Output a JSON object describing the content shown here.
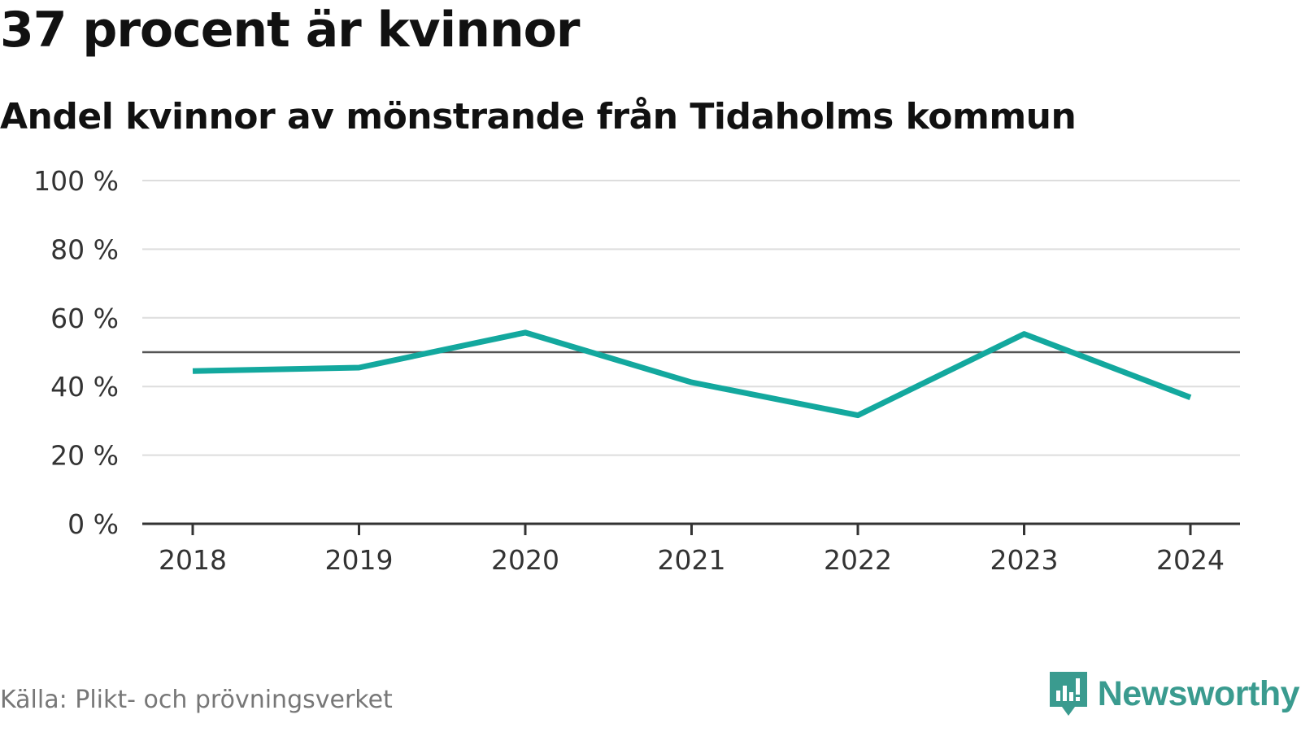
{
  "header": {
    "title": "37 procent är kvinnor",
    "subtitle": "Andel kvinnor av mönstrande från Tidaholms kommun"
  },
  "footer": {
    "source": "Källa: Plikt- och prövningsverket",
    "brand": "Newsworthy"
  },
  "colors": {
    "line": "#13a89e",
    "reference": "#555555",
    "grid": "#dddddd",
    "axis": "#333333",
    "brand": "#3a9b8f"
  },
  "chart_data": {
    "type": "line",
    "title": "37 procent är kvinnor",
    "subtitle": "Andel kvinnor av mönstrande från Tidaholms kommun",
    "xlabel": "",
    "ylabel": "",
    "categories": [
      "2018",
      "2019",
      "2020",
      "2021",
      "2022",
      "2023",
      "2024"
    ],
    "series": [
      {
        "name": "Andel kvinnor",
        "values": [
          44.5,
          45.5,
          55.7,
          41.2,
          31.6,
          55.3,
          36.8
        ]
      }
    ],
    "reference_line": 50,
    "ylim": [
      0,
      100
    ],
    "yticks": [
      0,
      20,
      40,
      60,
      80,
      100
    ],
    "ytick_labels": [
      "0 %",
      "20 %",
      "40 %",
      "60 %",
      "80 %",
      "100 %"
    ],
    "grid": true,
    "legend": "none"
  }
}
